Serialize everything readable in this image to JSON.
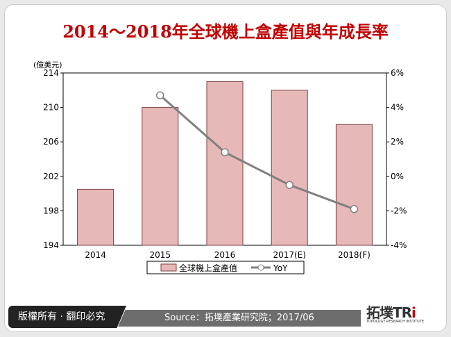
{
  "title": "2014～2018年全球機上盒產值與年成長率",
  "footer": {
    "copyright": "版權所有 · 翻印必究",
    "source": "Source：拓墣產業研究院；2017/06",
    "logo_text": "拓墣TRi",
    "logo_sub": "TOPOLOGY RESEARCH INSTITUTE"
  },
  "chart_data": {
    "type": "bar+line",
    "categories": [
      "2014",
      "2015",
      "2016",
      "2017(E)",
      "2018(F)"
    ],
    "y_unit_label": "(億美元)",
    "ylim": [
      194,
      214
    ],
    "yticks": [
      "194",
      "198",
      "202",
      "206",
      "210",
      "214"
    ],
    "y2lim": [
      -4,
      6
    ],
    "y2ticks": [
      "-4%",
      "-2%",
      "0%",
      "2%",
      "4%",
      "6%"
    ],
    "series": [
      {
        "name": "全球機上盒產值",
        "type": "bar",
        "axis": "left",
        "color": "#e6b8b7",
        "values": [
          200.5,
          210,
          213,
          212,
          208
        ]
      },
      {
        "name": "YoY",
        "type": "line",
        "axis": "right",
        "color": "#808080",
        "values": [
          null,
          4.7,
          1.4,
          -0.5,
          -1.9
        ]
      }
    ],
    "legend": "bottom"
  }
}
